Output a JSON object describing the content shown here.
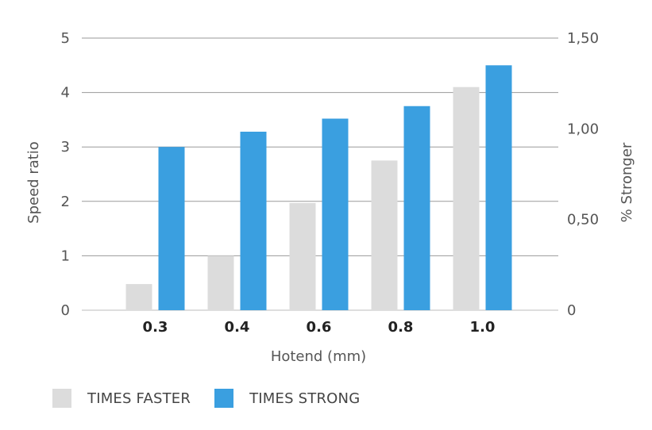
{
  "chart_data": {
    "type": "bar",
    "xlabel": "Hotend (mm)",
    "ylabel": "Speed ratio",
    "y2label": "% Stronger",
    "categories": [
      "0.3",
      "0.4",
      "0.6",
      "0.8",
      "1.0"
    ],
    "ylim": [
      0,
      5
    ],
    "y2lim": [
      0,
      1.5
    ],
    "yticks": [
      "0",
      "1",
      "2",
      "3",
      "4",
      "5"
    ],
    "y2ticks": [
      "0",
      "0,50",
      "1,00",
      "1,50"
    ],
    "grid": true,
    "legend_position": "bottom-left",
    "series": [
      {
        "name": "TIMES FASTER",
        "axis": "left",
        "color": "#dcdcdc",
        "values": [
          0.48,
          1.0,
          1.97,
          2.75,
          4.1
        ]
      },
      {
        "name": "TIMES STRONG",
        "axis": "left",
        "color": "#3a9fe0",
        "values": [
          3.0,
          3.28,
          3.52,
          3.75,
          4.5
        ]
      }
    ]
  }
}
